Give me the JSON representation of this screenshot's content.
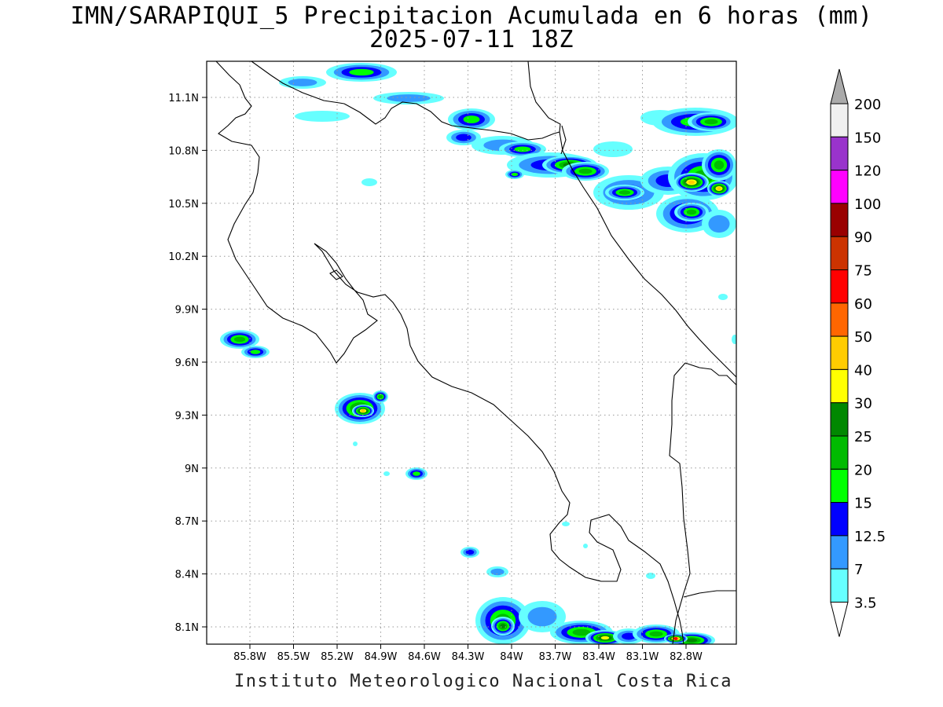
{
  "title_line1": "IMN/SARAPIQUI_5 Precipitacion Acumulada en 6 horas (mm)",
  "title_line2": "2025-07-11 18Z",
  "credit": "Instituto Meteorologico Nacional Costa Rica",
  "map": {
    "lon_range": [
      -86.0,
      -82.5
    ],
    "lat_range": [
      8.0,
      11.3
    ],
    "lon_ticks": [
      "85.8W",
      "85.5W",
      "85.2W",
      "84.9W",
      "84.6W",
      "84.3W",
      "84W",
      "83.7W",
      "83.4W",
      "83.1W",
      "82.8W"
    ],
    "lat_ticks": [
      "11.1N",
      "10.8N",
      "10.5N",
      "10.2N",
      "9.9N",
      "9.6N",
      "9.3N",
      "9N",
      "8.7N",
      "8.4N",
      "8.1N"
    ],
    "grid": "dotted"
  },
  "legend": {
    "labels": [
      "200",
      "150",
      "120",
      "100",
      "90",
      "75",
      "60",
      "50",
      "40",
      "30",
      "25",
      "20",
      "15",
      "12.5",
      "7",
      "3.5"
    ],
    "colors": [
      "#aaaaaa",
      "#f0f0f0",
      "#9933cc",
      "#ff00ff",
      "#990000",
      "#cc3300",
      "#ff0000",
      "#ff6600",
      "#ffcc00",
      "#ffff00",
      "#008800",
      "#00bb00",
      "#00ff00",
      "#0000ff",
      "#3399ff",
      "#66ffff",
      "#ffffff"
    ]
  },
  "precip_colors": {
    "p3": "#66ffff",
    "p7": "#3399ff",
    "p12": "#0000ff",
    "p15": "#00ff00",
    "p20": "#00bb00",
    "p25": "#008800",
    "p30": "#ffff00",
    "p40": "#ffcc00",
    "p60": "#ff0000"
  }
}
